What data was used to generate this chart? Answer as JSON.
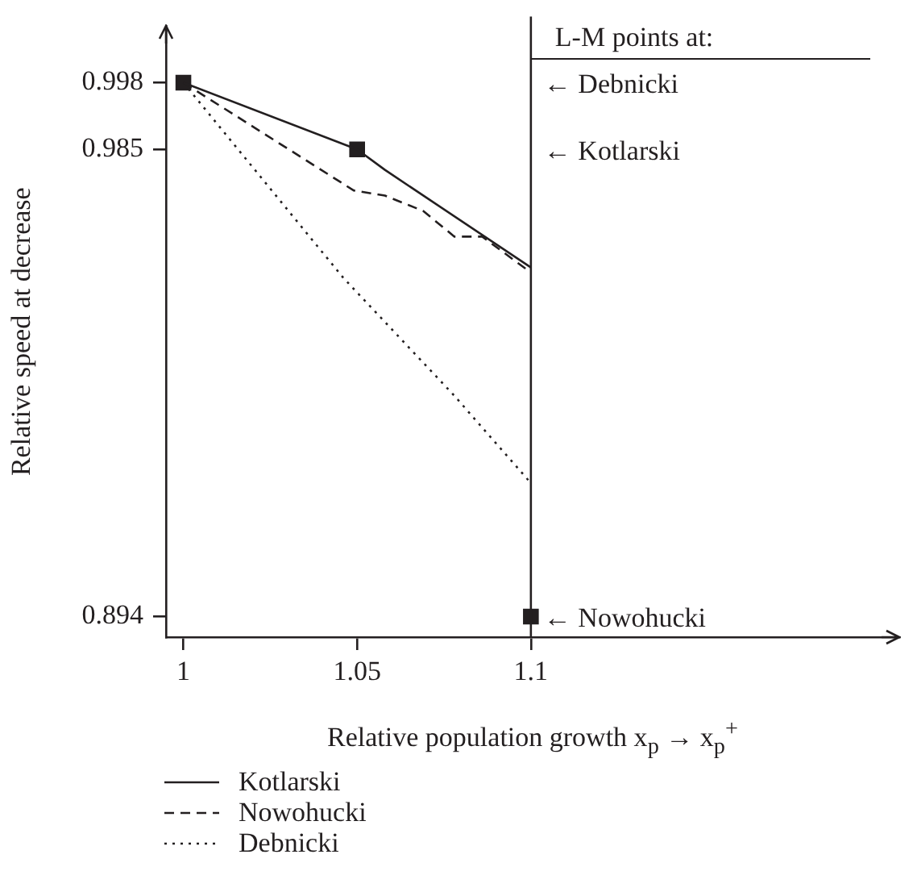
{
  "chart_data": {
    "type": "line",
    "xlabel": "Relative population growth x$_{p}$ → x$_{p}$$^{+}$",
    "ylabel": "Relative speed at decrease",
    "xlim": [
      0.995,
      1.206
    ],
    "xticks": [
      1,
      1.05,
      1.1
    ],
    "ylim": [
      0.89,
      1.009
    ],
    "yticks": [
      0.998,
      0.985,
      0.894
    ],
    "grid": false,
    "legend": "bottom",
    "marker": "none",
    "series": [
      {
        "name": "Kotlarski",
        "type": "line",
        "color": "#231f20",
        "line_style": "solid",
        "x": [
          1,
          1.05,
          1.058,
          1.1
        ],
        "values": [
          0.998,
          0.985,
          0.981,
          0.962
        ]
      },
      {
        "name": "Nowohucki",
        "type": "line",
        "color": "#231f20",
        "line_style": "dashed",
        "x": [
          1,
          1.049,
          1.058,
          1.069,
          1.078,
          1.086,
          1.1
        ],
        "values": [
          0.998,
          0.977,
          0.976,
          0.973,
          0.968,
          0.968,
          0.961
        ]
      },
      {
        "name": "Debnicki",
        "type": "line",
        "color": "#231f20",
        "line_style": "dotted",
        "x": [
          1,
          1.046,
          1.078,
          1.1
        ],
        "values": [
          0.998,
          0.96,
          0.937,
          0.92
        ]
      },
      {
        "type": "scatter",
        "color": "#231f20",
        "marker": "square",
        "x": [
          1,
          1.05,
          1.1
        ],
        "values": [
          0.998,
          0.985,
          0.894
        ]
      }
    ],
    "ref_lines": [
      {
        "axis": "x",
        "value": 1.1,
        "color": "#231f20"
      }
    ],
    "annotations": [
      "L-M points at:",
      "← Debnicki",
      "← Kotlarski",
      "← Nowohucki"
    ]
  }
}
